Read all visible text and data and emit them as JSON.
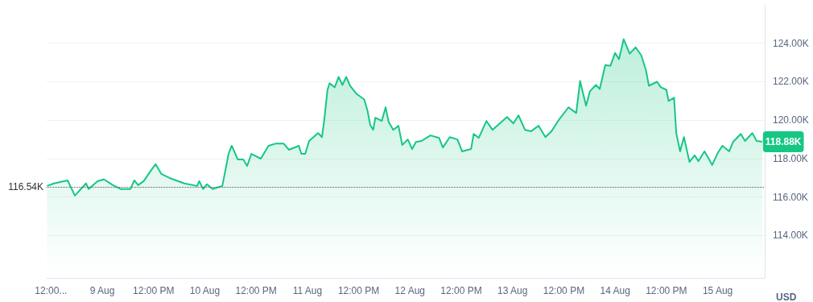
{
  "chart_data": {
    "type": "area",
    "ylabel": "USD",
    "x": [
      "--08-08T11:06",
      "--08-08T12:42",
      "--08-08T15:54",
      "--08-08T17:36",
      "--08-08T20:12",
      "--08-08T20:48",
      "--08-08T22:54",
      "--08-09T00:24",
      "--08-09T02:30",
      "--08-09T04:18",
      "--08-09T06:36",
      "--08-09T07:30",
      "--08-09T08:24",
      "--08-09T09:42",
      "--08-09T11:30",
      "--08-09T12:30",
      "--08-09T13:48",
      "--08-09T16:06",
      "--08-09T19:12",
      "--08-09T22:12",
      "--08-09T22:42",
      "--08-09T23:36",
      "--08-10T00:30",
      "--08-10T01:48",
      "--08-10T04:06",
      "--08-10T05:36",
      "--08-10T06:18",
      "--08-10T07:42",
      "--08-10T09:00",
      "--08-10T09:54",
      "--08-10T10:54",
      "--08-10T13:06",
      "--08-10T14:54",
      "--08-10T16:42",
      "--08-10T18:24",
      "--08-10T19:42",
      "--08-10T22:00",
      "--08-10T22:36",
      "--08-10T23:30",
      "--08-11T00:24",
      "--08-11T02:30",
      "--08-11T03:24",
      "--08-11T03:54",
      "--08-11T04:42",
      "--08-11T05:12",
      "--08-11T06:24",
      "--08-11T07:18",
      "--08-11T08:12",
      "--08-11T09:06",
      "--08-11T10:00",
      "--08-11T11:30",
      "--08-11T13:18",
      "--08-11T14:06",
      "--08-11T14:42",
      "--08-11T15:24",
      "--08-11T15:54",
      "--08-11T17:24",
      "--08-11T18:18",
      "--08-11T19:00",
      "--08-11T20:06",
      "--08-11T21:18",
      "--08-11T22:12",
      "--08-11T23:30",
      "--08-12T00:30",
      "--08-12T01:24",
      "--08-12T02:42",
      "--08-12T04:48",
      "--08-12T06:48",
      "--08-12T07:42",
      "--08-12T09:18",
      "--08-12T11:06",
      "--08-12T12:12",
      "--08-12T14:18",
      "--08-12T14:54",
      "--08-12T16:06",
      "--08-12T17:54",
      "--08-12T19:18",
      "--08-12T20:36",
      "--08-12T22:42",
      "--08-13T00:12",
      "--08-13T01:24",
      "--08-13T02:54",
      "--08-13T04:18",
      "--08-13T06:06",
      "--08-13T07:42",
      "--08-13T09:06",
      "--08-13T10:54",
      "--08-13T13:06",
      "--08-13T14:54",
      "--08-13T15:48",
      "--08-13T17:12",
      "--08-13T18:06",
      "--08-13T19:30",
      "--08-13T20:24",
      "--08-13T21:42",
      "--08-13T22:54",
      "--08-14T00:00",
      "--08-14T00:54",
      "--08-14T02:00",
      "--08-14T03:24",
      "--08-14T04:48",
      "--08-14T06:06",
      "--08-14T07:12",
      "--08-14T07:54",
      "--08-14T09:48",
      "--08-14T10:42",
      "--08-14T12:00",
      "--08-14T12:30",
      "--08-14T13:48",
      "--08-14T14:18",
      "--08-14T15:12",
      "--08-14T16:06",
      "--08-14T17:24",
      "--08-14T18:36",
      "--08-14T19:30",
      "--08-14T20:54",
      "--08-14T21:48",
      "--08-14T22:42",
      "--08-15T00:00",
      "--08-15T01:06",
      "--08-15T02:42",
      "--08-15T03:36",
      "--08-15T05:24",
      "--08-15T06:24",
      "--08-15T08:06",
      "--08-15T09:06",
      "--08-15T10:24"
    ],
    "series": [
      {
        "color": "#16c784",
        "values": [
          116580,
          116710,
          116870,
          116080,
          116710,
          116420,
          116830,
          116920,
          116620,
          116420,
          116420,
          116870,
          116620,
          116830,
          117420,
          117710,
          117210,
          116960,
          116710,
          116580,
          116830,
          116420,
          116670,
          116420,
          116580,
          118290,
          118670,
          117960,
          117960,
          117620,
          118250,
          118000,
          118670,
          118790,
          118790,
          118460,
          118670,
          118250,
          118250,
          118920,
          119330,
          119120,
          119920,
          121580,
          121920,
          121710,
          122250,
          121830,
          122250,
          121790,
          121370,
          121080,
          120460,
          119750,
          119500,
          120130,
          119960,
          120670,
          119920,
          119500,
          119710,
          118710,
          119000,
          118500,
          118870,
          118920,
          119210,
          119080,
          118580,
          119120,
          119000,
          118380,
          118500,
          119290,
          119080,
          119960,
          119500,
          119750,
          120170,
          119830,
          120250,
          119500,
          119420,
          119710,
          119120,
          119420,
          120040,
          120670,
          120370,
          122040,
          120750,
          121500,
          121830,
          121620,
          122870,
          122830,
          123500,
          123170,
          124210,
          123460,
          123790,
          123380,
          122620,
          121790,
          122000,
          121710,
          121580,
          121000,
          121170,
          119330,
          118380,
          119120,
          117830,
          118170,
          117870,
          118380,
          118040,
          117670,
          118290,
          118670,
          118380,
          118870,
          119290,
          118920,
          119330,
          118920,
          118880
        ]
      }
    ],
    "xlim": [
      "--08-08T11:00",
      "--08-15T11:00"
    ],
    "xticks": [
      {
        "value": "--08-08T12:00",
        "label": "12:00..."
      },
      {
        "value": "--08-09T00:00",
        "label": "9 Aug"
      },
      {
        "value": "--08-09T12:00",
        "label": "12:00 PM"
      },
      {
        "value": "--08-10T00:00",
        "label": "10 Aug"
      },
      {
        "value": "--08-10T12:00",
        "label": "12:00 PM"
      },
      {
        "value": "--08-11T00:00",
        "label": "11 Aug"
      },
      {
        "value": "--08-11T12:00",
        "label": "12:00 PM"
      },
      {
        "value": "--08-12T00:00",
        "label": "12 Aug"
      },
      {
        "value": "--08-12T12:00",
        "label": "12:00 PM"
      },
      {
        "value": "--08-13T00:00",
        "label": "13 Aug"
      },
      {
        "value": "--08-13T12:00",
        "label": "12:00 PM"
      },
      {
        "value": "--08-14T00:00",
        "label": "14 Aug"
      },
      {
        "value": "--08-14T12:00",
        "label": "12:00 PM"
      },
      {
        "value": "--08-15T00:00",
        "label": "15 Aug"
      }
    ],
    "ylim": [
      111800,
      126000
    ],
    "yticks": [
      {
        "value": 114000,
        "label": "114.00K"
      },
      {
        "value": 116000,
        "label": "116.00K"
      },
      {
        "value": 118000,
        "label": "118.00K"
      },
      {
        "value": 120000,
        "label": "120.00K"
      },
      {
        "value": 122000,
        "label": "122.00K"
      },
      {
        "value": 124000,
        "label": "124.00K"
      }
    ],
    "ref_lines": [
      {
        "axis": "y",
        "value": 116540,
        "label": "116.54K",
        "line_style": "dotted",
        "color": "#555555"
      }
    ],
    "annotations": [
      "118.88K"
    ],
    "grid": "y",
    "marker": "none",
    "line_style": "solid"
  }
}
